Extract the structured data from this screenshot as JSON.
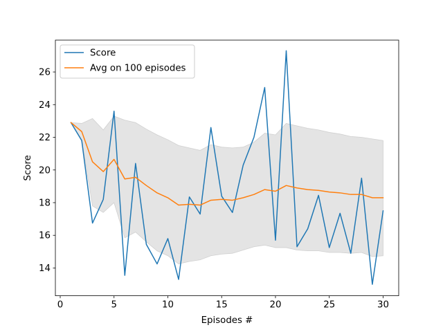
{
  "chart_data": {
    "type": "line",
    "xlabel": "Episodes #",
    "ylabel": "Score",
    "xlim": [
      -0.45,
      31.45
    ],
    "ylim": [
      12.3,
      27.95
    ],
    "xticks": [
      0,
      5,
      10,
      15,
      20,
      25,
      30
    ],
    "yticks": [
      14,
      16,
      18,
      20,
      22,
      24,
      26
    ],
    "grid": false,
    "legend": {
      "placement": "upper-left"
    },
    "x": [
      1,
      2,
      3,
      4,
      5,
      6,
      7,
      8,
      9,
      10,
      11,
      12,
      13,
      14,
      15,
      16,
      17,
      18,
      19,
      20,
      21,
      22,
      23,
      24,
      25,
      26,
      27,
      28,
      29,
      30
    ],
    "series": [
      {
        "name": "Score",
        "color": "#1f77b4",
        "values": [
          22.9,
          21.8,
          16.75,
          18.2,
          23.6,
          13.55,
          20.4,
          15.45,
          14.25,
          15.8,
          13.3,
          18.35,
          17.3,
          22.6,
          18.4,
          17.4,
          20.3,
          22.0,
          25.05,
          15.7,
          27.3,
          15.3,
          16.4,
          18.45,
          15.25,
          17.35,
          14.9,
          19.5,
          13.0,
          17.5
        ]
      },
      {
        "name": "Avg on 100 episodes",
        "color": "#ff7f0e",
        "values": [
          22.9,
          22.35,
          20.5,
          19.9,
          20.65,
          19.45,
          19.55,
          19.05,
          18.6,
          18.3,
          17.85,
          17.9,
          17.85,
          18.15,
          18.2,
          18.15,
          18.3,
          18.5,
          18.8,
          18.7,
          19.05,
          18.9,
          18.8,
          18.75,
          18.65,
          18.6,
          18.5,
          18.5,
          18.3,
          18.3
        ]
      }
    ],
    "band": {
      "color": "#e4e4e4",
      "upper": [
        22.9,
        22.85,
        23.15,
        22.45,
        23.3,
        23.05,
        22.9,
        22.5,
        22.15,
        21.85,
        21.5,
        21.35,
        21.2,
        21.55,
        21.4,
        21.35,
        21.4,
        21.7,
        22.25,
        22.15,
        22.85,
        22.7,
        22.55,
        22.45,
        22.3,
        22.2,
        22.05,
        22.0,
        21.9,
        21.8
      ],
      "lower": [
        22.9,
        21.85,
        17.8,
        17.4,
        18.0,
        15.85,
        16.2,
        15.6,
        15.05,
        14.75,
        14.25,
        14.4,
        14.5,
        14.75,
        14.85,
        14.9,
        15.1,
        15.3,
        15.4,
        15.25,
        15.25,
        15.1,
        15.05,
        15.05,
        14.95,
        14.95,
        14.9,
        14.95,
        14.7,
        14.75
      ]
    }
  }
}
